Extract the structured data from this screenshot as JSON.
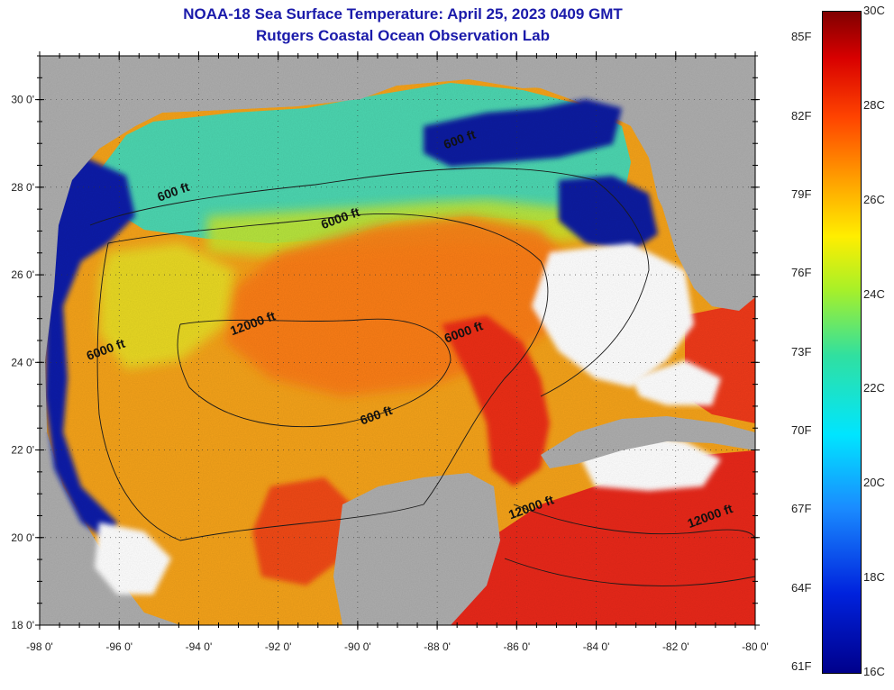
{
  "title": "NOAA-18 Sea Surface Temperature:  April 25, 2023 0409 GMT",
  "subtitle": "Rutgers Coastal Ocean Observation Lab",
  "lat_ticks": [
    {
      "value": 30,
      "label": "30 0'"
    },
    {
      "value": 28,
      "label": "28 0'"
    },
    {
      "value": 26,
      "label": "26 0'"
    },
    {
      "value": 24,
      "label": "24 0'"
    },
    {
      "value": 22,
      "label": "22 0'"
    },
    {
      "value": 20,
      "label": "20 0'"
    },
    {
      "value": 18,
      "label": "18 0'"
    }
  ],
  "lon_ticks": [
    {
      "value": -98,
      "label": "-98 0'"
    },
    {
      "value": -96,
      "label": "-96 0'"
    },
    {
      "value": -94,
      "label": "-94 0'"
    },
    {
      "value": -92,
      "label": "-92 0'"
    },
    {
      "value": -90,
      "label": "-90 0'"
    },
    {
      "value": -88,
      "label": "-88 0'"
    },
    {
      "value": -86,
      "label": "-86 0'"
    },
    {
      "value": -84,
      "label": "-84 0'"
    },
    {
      "value": -82,
      "label": "-82 0'"
    },
    {
      "value": -80,
      "label": "-80 0'"
    }
  ],
  "extent": {
    "lon_min": -98,
    "lon_max": -80,
    "lat_min": 18,
    "lat_max": 31
  },
  "depth_labels": [
    {
      "text": "600 ft",
      "lon": -87.4,
      "lat": 29.0
    },
    {
      "text": "600 ft",
      "lon": -94.6,
      "lat": 27.8
    },
    {
      "text": "6000 ft",
      "lon": -90.4,
      "lat": 27.2
    },
    {
      "text": "12000 ft",
      "lon": -92.6,
      "lat": 24.8
    },
    {
      "text": "6000 ft",
      "lon": -87.3,
      "lat": 24.6
    },
    {
      "text": "6000 ft",
      "lon": -96.3,
      "lat": 24.2
    },
    {
      "text": "600 ft",
      "lon": -89.5,
      "lat": 22.7
    },
    {
      "text": "12000 ft",
      "lon": -85.6,
      "lat": 20.6
    },
    {
      "text": "12000 ft",
      "lon": -81.1,
      "lat": 20.4
    }
  ],
  "colorbar": {
    "min_c": 16,
    "max_c": 30,
    "celsius_labels": [
      "30C",
      "28C",
      "26C",
      "24C",
      "22C",
      "20C",
      "18C",
      "16C"
    ],
    "fahrenheit_labels": [
      "85F",
      "82F",
      "79F",
      "76F",
      "73F",
      "70F",
      "67F",
      "64F",
      "61F"
    ],
    "fahrenheit_values": [
      85,
      82,
      79,
      76,
      73,
      70,
      67,
      64,
      61
    ]
  },
  "colors": {
    "land": "#aeaeae",
    "title": "#1a1aaa",
    "cloud": "#ffffff",
    "warm": "#ff4a1a",
    "cold": "#00008b"
  }
}
